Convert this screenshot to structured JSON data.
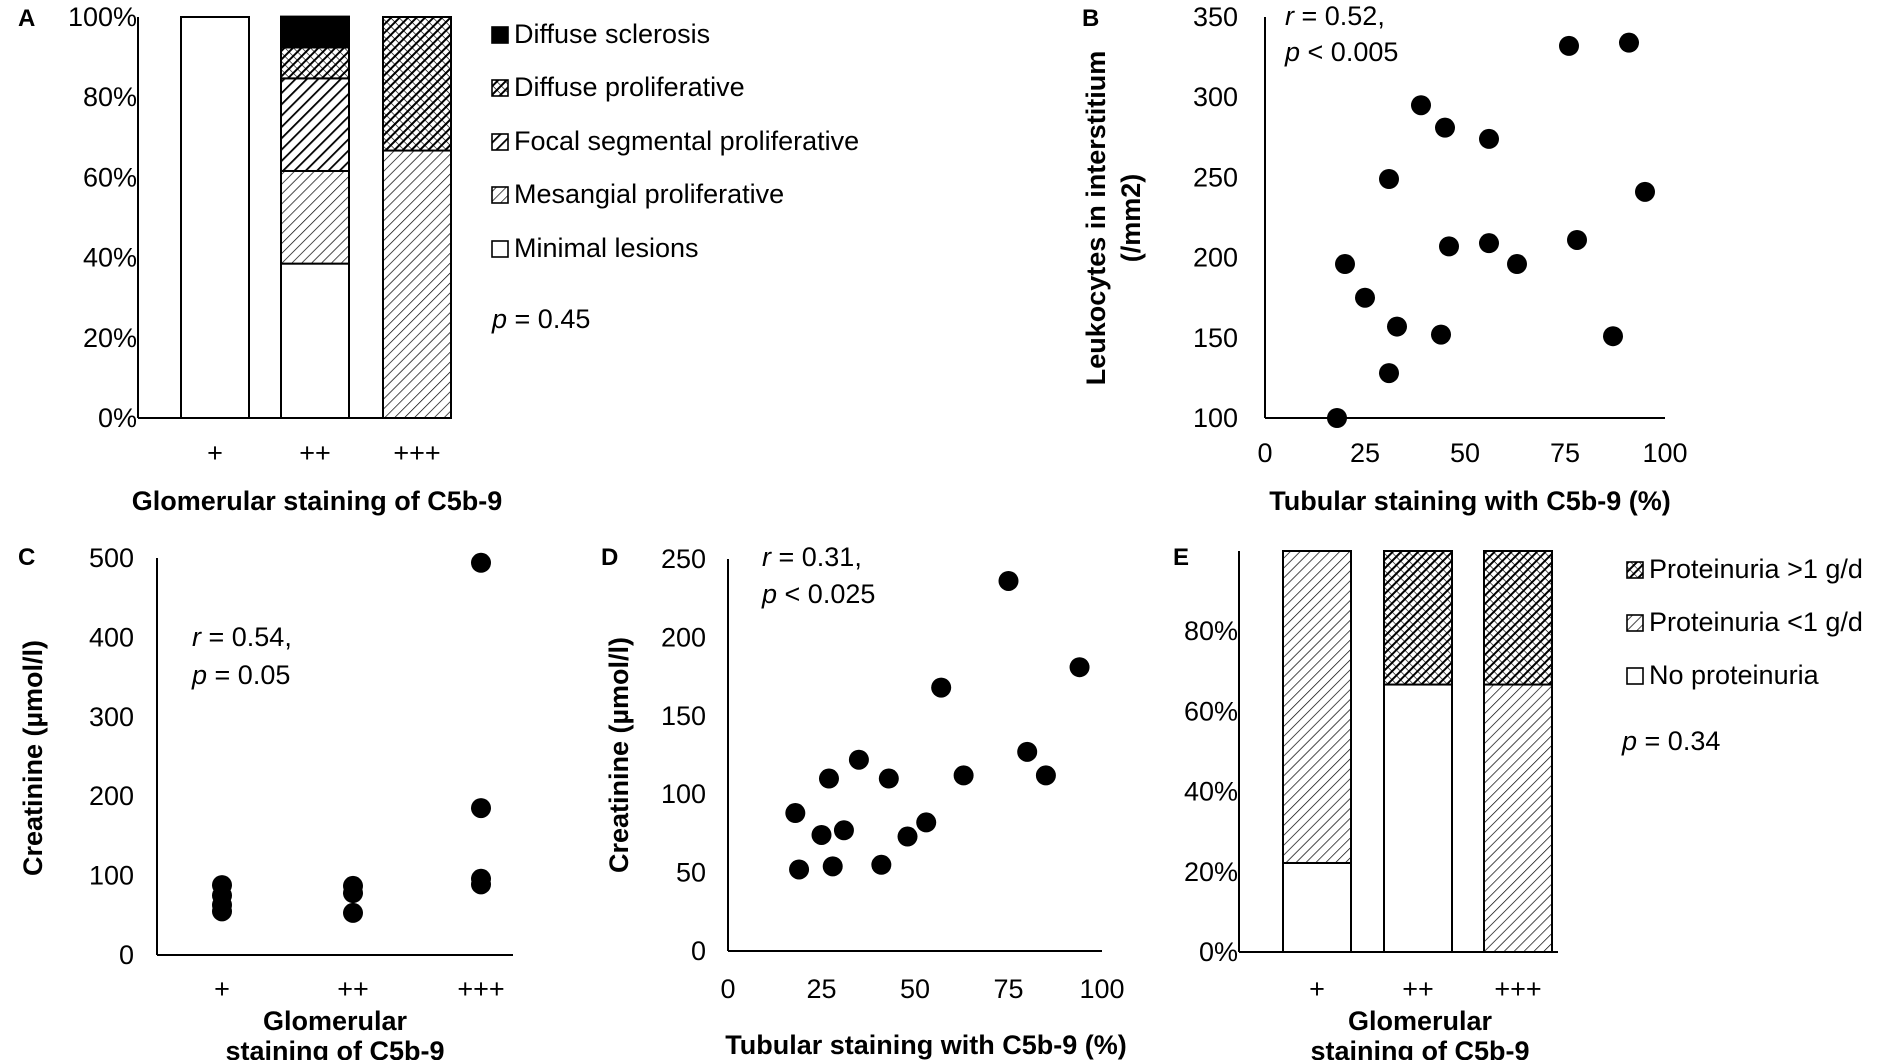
{
  "colors": {
    "ink": "#000000",
    "paper": "#ffffff"
  },
  "chart_data": [
    {
      "id": "A",
      "panel_label": "A",
      "type": "bar",
      "stacked": true,
      "xlabel": "Glomerular staining of C5b-9",
      "ylabel": "",
      "ylim": [
        0,
        100
      ],
      "yticks": [
        "0%",
        "20%",
        "40%",
        "60%",
        "80%",
        "100%"
      ],
      "categories": [
        "+",
        "++",
        "+++"
      ],
      "series": [
        {
          "name": "Minimal lesions",
          "pattern": "white",
          "values": [
            100,
            38.5,
            0
          ]
        },
        {
          "name": "Mesangial proliferative",
          "pattern": "light-hatch",
          "values": [
            0,
            23.1,
            66.7
          ]
        },
        {
          "name": "Focal segmental proliferative",
          "pattern": "medium-hatch",
          "values": [
            0,
            23.1,
            0
          ]
        },
        {
          "name": "Diffuse proliferative",
          "pattern": "checker",
          "values": [
            0,
            7.7,
            33.3
          ]
        },
        {
          "name": "Diffuse sclerosis",
          "pattern": "black",
          "values": [
            0,
            7.7,
            0
          ]
        }
      ],
      "legend_order": [
        "Diffuse sclerosis",
        "Diffuse proliferative",
        "Focal segmental proliferative",
        "Mesangial proliferative",
        "Minimal lesions"
      ],
      "annotation": {
        "var": "p",
        "rest": " = 0.45"
      }
    },
    {
      "id": "B",
      "panel_label": "B",
      "type": "scatter",
      "xlabel": "Tubular staining with C5b-9 (%)",
      "ylabel_lines": [
        "Leukocytes in interstitium",
        "(/mm2)"
      ],
      "xlim": [
        0,
        100
      ],
      "ylim": [
        100,
        350
      ],
      "xticks": [
        0,
        25,
        50,
        75,
        100
      ],
      "yticks": [
        100,
        150,
        200,
        250,
        300,
        350
      ],
      "points": [
        [
          18,
          100
        ],
        [
          20,
          196
        ],
        [
          25,
          175
        ],
        [
          31,
          128
        ],
        [
          31,
          249
        ],
        [
          33,
          157
        ],
        [
          39,
          295
        ],
        [
          44,
          152
        ],
        [
          45,
          281
        ],
        [
          46,
          207
        ],
        [
          56,
          274
        ],
        [
          56,
          209
        ],
        [
          63,
          196
        ],
        [
          76,
          332
        ],
        [
          78,
          211
        ],
        [
          87,
          151
        ],
        [
          91,
          334
        ],
        [
          95,
          241
        ]
      ],
      "annotation_lines": [
        {
          "var": "r",
          "rest": " = 0.52,"
        },
        {
          "var": "p",
          "rest": " < 0.005"
        }
      ]
    },
    {
      "id": "C",
      "panel_label": "C",
      "type": "scatter",
      "xlabel_lines": [
        "Glomerular",
        "staining of C5b-9"
      ],
      "ylabel": "Creatinine (µmol/l)",
      "categories": [
        "+",
        "++",
        "+++"
      ],
      "ylim": [
        0,
        500
      ],
      "yticks": [
        0,
        100,
        200,
        300,
        400,
        500
      ],
      "points": [
        [
          0,
          88
        ],
        [
          0,
          75
        ],
        [
          0,
          63
        ],
        [
          0,
          55
        ],
        [
          1,
          87
        ],
        [
          1,
          78
        ],
        [
          1,
          53
        ],
        [
          2,
          494
        ],
        [
          2,
          185
        ],
        [
          2,
          96
        ],
        [
          2,
          89
        ]
      ],
      "annotation_lines": [
        {
          "var": "r",
          "rest": " = 0.54,"
        },
        {
          "var": "p",
          "rest": " = 0.05"
        }
      ]
    },
    {
      "id": "D",
      "panel_label": "D",
      "type": "scatter",
      "xlabel": "Tubular staining with C5b-9 (%)",
      "ylabel": "Creatinine (µmol/l)",
      "xlim": [
        0,
        100
      ],
      "ylim": [
        0,
        250
      ],
      "xticks": [
        0,
        25,
        50,
        75,
        100
      ],
      "yticks": [
        0,
        50,
        100,
        150,
        200,
        250
      ],
      "points": [
        [
          18,
          88
        ],
        [
          19,
          52
        ],
        [
          25,
          74
        ],
        [
          27,
          110
        ],
        [
          28,
          54
        ],
        [
          31,
          77
        ],
        [
          35,
          122
        ],
        [
          41,
          55
        ],
        [
          43,
          110
        ],
        [
          48,
          73
        ],
        [
          53,
          82
        ],
        [
          57,
          168
        ],
        [
          63,
          112
        ],
        [
          75,
          236
        ],
        [
          80,
          127
        ],
        [
          85,
          112
        ],
        [
          94,
          181
        ]
      ],
      "annotation_lines": [
        {
          "var": "r",
          "rest": " = 0.31,"
        },
        {
          "var": "p",
          "rest": " < 0.025"
        }
      ]
    },
    {
      "id": "E",
      "panel_label": "E",
      "type": "bar",
      "stacked": true,
      "xlabel_lines": [
        "Glomerular",
        "staining of C5b-9"
      ],
      "ylim": [
        0,
        100
      ],
      "yticks": [
        "0%",
        "20%",
        "40%",
        "60%",
        "80%"
      ],
      "categories": [
        "+",
        "++",
        "+++"
      ],
      "series": [
        {
          "name": "No proteinuria",
          "pattern": "white",
          "values": [
            22.2,
            66.7,
            0
          ]
        },
        {
          "name": "Proteinuria <1 g/d",
          "pattern": "light-hatch",
          "values": [
            77.8,
            0,
            66.7
          ]
        },
        {
          "name": "Proteinuria >1 g/d",
          "pattern": "checker",
          "values": [
            0,
            33.3,
            33.3
          ]
        }
      ],
      "legend_order": [
        "Proteinuria >1 g/d",
        "Proteinuria <1 g/d",
        "No proteinuria"
      ],
      "annotation": {
        "var": "p",
        "rest": " = 0.34"
      }
    }
  ]
}
